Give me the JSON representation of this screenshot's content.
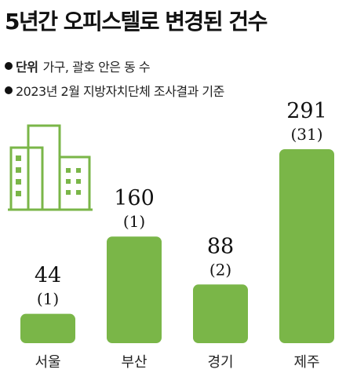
{
  "title": "5년간 오피스텔로 변경된 건수",
  "notes": {
    "unit_label": "단위",
    "unit_text": "가구, 괄호 안은 동 수",
    "basis": "2023년 2월 지방자치단체 조사결과 기준"
  },
  "icons": {
    "building": "building-icon",
    "bullet": "bullet-dot-icon"
  },
  "colors": {
    "bar": "#7ab648"
  },
  "chart_data": {
    "type": "bar",
    "title": "5년간 오피스텔로 변경된 건수",
    "categories": [
      "서울",
      "부산",
      "경기",
      "제주"
    ],
    "values": [
      44,
      160,
      88,
      291
    ],
    "secondary_values": [
      1,
      1,
      2,
      31
    ],
    "secondary_display": [
      "(1)",
      "(1)",
      "(2)",
      "(31)"
    ],
    "value_labels": [
      "44",
      "160",
      "88",
      "291"
    ],
    "unit": "가구",
    "ylim": [
      0,
      291
    ],
    "grid": false,
    "legend": "none"
  }
}
